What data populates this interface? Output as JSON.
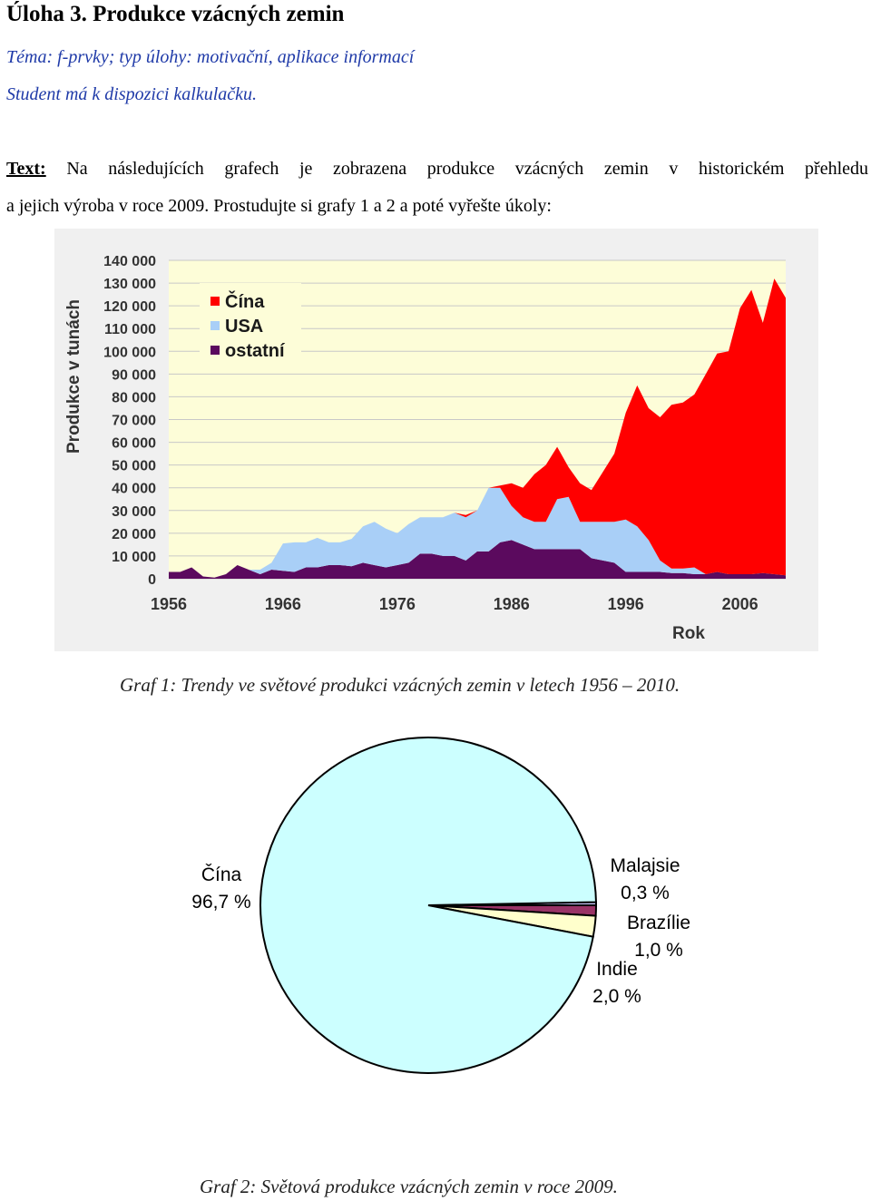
{
  "heading": "Úloha 3. Produkce vzácných zemin",
  "topic_line": "Téma: f-prvky; typ úlohy: motivační, aplikace informací",
  "student_line": "Student má k dispozici kalkulačku.",
  "text_label": "Text:",
  "text_line1": " Na následujících grafech je zobrazena produkce vzácných zemin v historickém přehledu",
  "text_line2": "a jejich výroba v roce 2009. Prostudujte si grafy 1 a 2 a poté vyřešte úkoly:",
  "caption1": "Graf 1: Trendy ve světové produkci vzácných zemin v letech 1956 – 2010.",
  "caption2": "Graf 2: Světová produkce vzácných zemin v roce 2009.",
  "chart_data": [
    {
      "type": "area",
      "stacked": true,
      "ylabel": "Produkce v tunách",
      "xlabel": "Rok",
      "ylim": [
        0,
        140000
      ],
      "xlim": [
        1956,
        2010
      ],
      "yticks": [
        "0",
        "10 000",
        "20 000",
        "30 000",
        "40 000",
        "50 000",
        "60 000",
        "70 000",
        "80 000",
        "90 000",
        "100 000",
        "110 000",
        "120 000",
        "130 000",
        "140 000"
      ],
      "xticks": [
        "1956",
        "1966",
        "1976",
        "1986",
        "1996",
        "2006"
      ],
      "legend_position": "top-left",
      "grid": true,
      "x": [
        1956,
        1957,
        1958,
        1959,
        1960,
        1961,
        1962,
        1963,
        1964,
        1965,
        1966,
        1967,
        1968,
        1969,
        1970,
        1971,
        1972,
        1973,
        1974,
        1975,
        1976,
        1977,
        1978,
        1979,
        1980,
        1981,
        1982,
        1983,
        1984,
        1985,
        1986,
        1987,
        1988,
        1989,
        1990,
        1991,
        1992,
        1993,
        1994,
        1995,
        1996,
        1997,
        1998,
        1999,
        2000,
        2001,
        2002,
        2003,
        2004,
        2005,
        2006,
        2007,
        2008,
        2009,
        2010
      ],
      "series": [
        {
          "name": "ostatní",
          "color": "#5b0a5e",
          "values": [
            3000,
            3000,
            5000,
            1000,
            500,
            2000,
            6000,
            4000,
            2000,
            4000,
            3500,
            3000,
            5000,
            5000,
            6000,
            6000,
            5500,
            7000,
            6000,
            5000,
            6000,
            7000,
            11000,
            11000,
            10000,
            10000,
            8000,
            12000,
            12000,
            16000,
            17000,
            15000,
            13000,
            13000,
            13000,
            13000,
            13000,
            9000,
            8000,
            7000,
            3000,
            3000,
            3000,
            3000,
            2500,
            2500,
            2000,
            2000,
            3000,
            2000,
            2000,
            2000,
            2500,
            2000,
            1500
          ]
        },
        {
          "name": "USA",
          "color": "#a9cff7",
          "values": [
            0,
            0,
            0,
            0,
            0,
            0,
            0,
            0,
            2000,
            3000,
            12000,
            13000,
            11000,
            13000,
            10000,
            10000,
            12000,
            16000,
            19000,
            17000,
            14000,
            17000,
            16000,
            16000,
            17000,
            19000,
            19000,
            18000,
            28000,
            24000,
            15000,
            12000,
            12000,
            12000,
            22000,
            23000,
            12000,
            16000,
            17000,
            18000,
            23000,
            20000,
            14000,
            5000,
            2000,
            2000,
            3000,
            0,
            0,
            0,
            0,
            0,
            0,
            0,
            0
          ]
        },
        {
          "name": "Čína",
          "color": "#ff0000",
          "values": [
            0,
            0,
            0,
            0,
            0,
            0,
            0,
            0,
            0,
            0,
            0,
            0,
            0,
            0,
            0,
            0,
            0,
            0,
            0,
            0,
            0,
            0,
            0,
            0,
            0,
            0,
            1000,
            0,
            0,
            1000,
            10000,
            13000,
            21000,
            25000,
            23000,
            13000,
            17000,
            14000,
            22000,
            30000,
            47000,
            62000,
            58000,
            63000,
            72000,
            73000,
            76000,
            88000,
            96000,
            98000,
            117000,
            125000,
            110000,
            130000,
            122000
          ]
        }
      ]
    },
    {
      "type": "pie",
      "slices": [
        {
          "label": "Čína",
          "value_text": "96,7 %",
          "value": 96.7,
          "color": "#ccffff"
        },
        {
          "label": "Indie",
          "value_text": "2,0 %",
          "value": 2.0,
          "color": "#ffffcc"
        },
        {
          "label": "Brazílie",
          "value_text": "1,0 %",
          "value": 1.0,
          "color": "#993366"
        },
        {
          "label": "Malajsie",
          "value_text": "0,3 %",
          "value": 0.3,
          "color": "#ccccff"
        }
      ]
    }
  ]
}
